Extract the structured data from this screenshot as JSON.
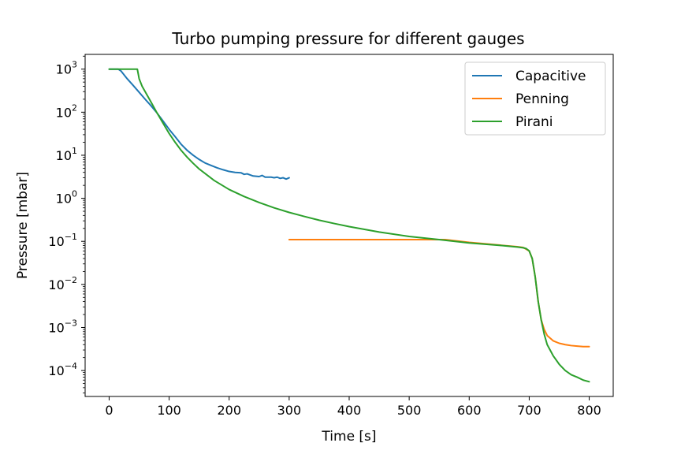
{
  "chart_data": {
    "type": "line",
    "title": "Turbo pumping pressure for different gauges",
    "xlabel": "Time [s]",
    "ylabel": "Pressure [mbar]",
    "xlim": [
      -40,
      840
    ],
    "ylim": [
      2.5e-05,
      2200.0
    ],
    "yscale": "log",
    "grid": false,
    "legend_position": "top-right",
    "x_ticks": [
      {
        "value": 0,
        "label": "0"
      },
      {
        "value": 100,
        "label": "100"
      },
      {
        "value": 200,
        "label": "200"
      },
      {
        "value": 300,
        "label": "300"
      },
      {
        "value": 400,
        "label": "400"
      },
      {
        "value": 500,
        "label": "500"
      },
      {
        "value": 600,
        "label": "600"
      },
      {
        "value": 700,
        "label": "700"
      },
      {
        "value": 800,
        "label": "800"
      }
    ],
    "y_ticks": [
      {
        "value": 1000,
        "base": "10",
        "exp": "3"
      },
      {
        "value": 100,
        "base": "10",
        "exp": "2"
      },
      {
        "value": 10,
        "base": "10",
        "exp": "1"
      },
      {
        "value": 1,
        "base": "10",
        "exp": "0"
      },
      {
        "value": 0.1,
        "base": "10",
        "exp": "−1"
      },
      {
        "value": 0.01,
        "base": "10",
        "exp": "−2"
      },
      {
        "value": 0.001,
        "base": "10",
        "exp": "−3"
      },
      {
        "value": 0.0001,
        "base": "10",
        "exp": "−4"
      }
    ],
    "series": [
      {
        "name": "Capacitive",
        "color": "#1f77b4",
        "points": [
          [
            0,
            1000
          ],
          [
            15,
            1000
          ],
          [
            20,
            900
          ],
          [
            30,
            600
          ],
          [
            40,
            420
          ],
          [
            50,
            290
          ],
          [
            60,
            200
          ],
          [
            70,
            140
          ],
          [
            80,
            95
          ],
          [
            90,
            62
          ],
          [
            100,
            40
          ],
          [
            110,
            27
          ],
          [
            120,
            18
          ],
          [
            130,
            13
          ],
          [
            140,
            10
          ],
          [
            150,
            8
          ],
          [
            160,
            6.6
          ],
          [
            170,
            5.8
          ],
          [
            180,
            5.1
          ],
          [
            190,
            4.6
          ],
          [
            200,
            4.2
          ],
          [
            210,
            4.0
          ],
          [
            220,
            3.9
          ],
          [
            225,
            3.6
          ],
          [
            230,
            3.7
          ],
          [
            240,
            3.3
          ],
          [
            250,
            3.2
          ],
          [
            255,
            3.4
          ],
          [
            260,
            3.1
          ],
          [
            270,
            3.1
          ],
          [
            275,
            3.0
          ],
          [
            280,
            3.1
          ],
          [
            285,
            2.9
          ],
          [
            290,
            3.0
          ],
          [
            295,
            2.8
          ],
          [
            300,
            3.0
          ]
        ]
      },
      {
        "name": "Penning",
        "color": "#ff7f0e",
        "points": [
          [
            300,
            0.11
          ],
          [
            400,
            0.11
          ],
          [
            500,
            0.11
          ],
          [
            560,
            0.11
          ],
          [
            600,
            0.095
          ],
          [
            650,
            0.082
          ],
          [
            680,
            0.075
          ],
          [
            690,
            0.072
          ],
          [
            700,
            0.06
          ],
          [
            705,
            0.04
          ],
          [
            710,
            0.015
          ],
          [
            715,
            0.004
          ],
          [
            720,
            0.0015
          ],
          [
            725,
            0.0009
          ],
          [
            730,
            0.00065
          ],
          [
            740,
            0.00049
          ],
          [
            750,
            0.00043
          ],
          [
            760,
            0.0004
          ],
          [
            770,
            0.00038
          ],
          [
            780,
            0.00037
          ],
          [
            790,
            0.00036
          ],
          [
            800,
            0.00036
          ]
        ]
      },
      {
        "name": "Pirani",
        "color": "#2ca02c",
        "points": [
          [
            0,
            1000
          ],
          [
            44,
            1000
          ],
          [
            47,
            1000
          ],
          [
            50,
            600
          ],
          [
            55,
            400
          ],
          [
            60,
            300
          ],
          [
            70,
            170
          ],
          [
            80,
            95
          ],
          [
            90,
            55
          ],
          [
            100,
            32
          ],
          [
            110,
            20
          ],
          [
            120,
            13
          ],
          [
            130,
            9
          ],
          [
            140,
            6.5
          ],
          [
            150,
            4.8
          ],
          [
            175,
            2.6
          ],
          [
            200,
            1.6
          ],
          [
            225,
            1.1
          ],
          [
            250,
            0.8
          ],
          [
            275,
            0.6
          ],
          [
            300,
            0.47
          ],
          [
            325,
            0.38
          ],
          [
            350,
            0.31
          ],
          [
            375,
            0.26
          ],
          [
            400,
            0.22
          ],
          [
            450,
            0.165
          ],
          [
            500,
            0.13
          ],
          [
            550,
            0.11
          ],
          [
            600,
            0.092
          ],
          [
            650,
            0.081
          ],
          [
            680,
            0.074
          ],
          [
            690,
            0.071
          ],
          [
            695,
            0.068
          ],
          [
            700,
            0.06
          ],
          [
            705,
            0.04
          ],
          [
            710,
            0.015
          ],
          [
            715,
            0.004
          ],
          [
            720,
            0.0015
          ],
          [
            725,
            0.0007
          ],
          [
            730,
            0.0004
          ],
          [
            740,
            0.00022
          ],
          [
            750,
            0.00014
          ],
          [
            760,
            0.0001
          ],
          [
            770,
            8e-05
          ],
          [
            780,
            7e-05
          ],
          [
            790,
            6e-05
          ],
          [
            800,
            5.5e-05
          ]
        ]
      }
    ]
  }
}
